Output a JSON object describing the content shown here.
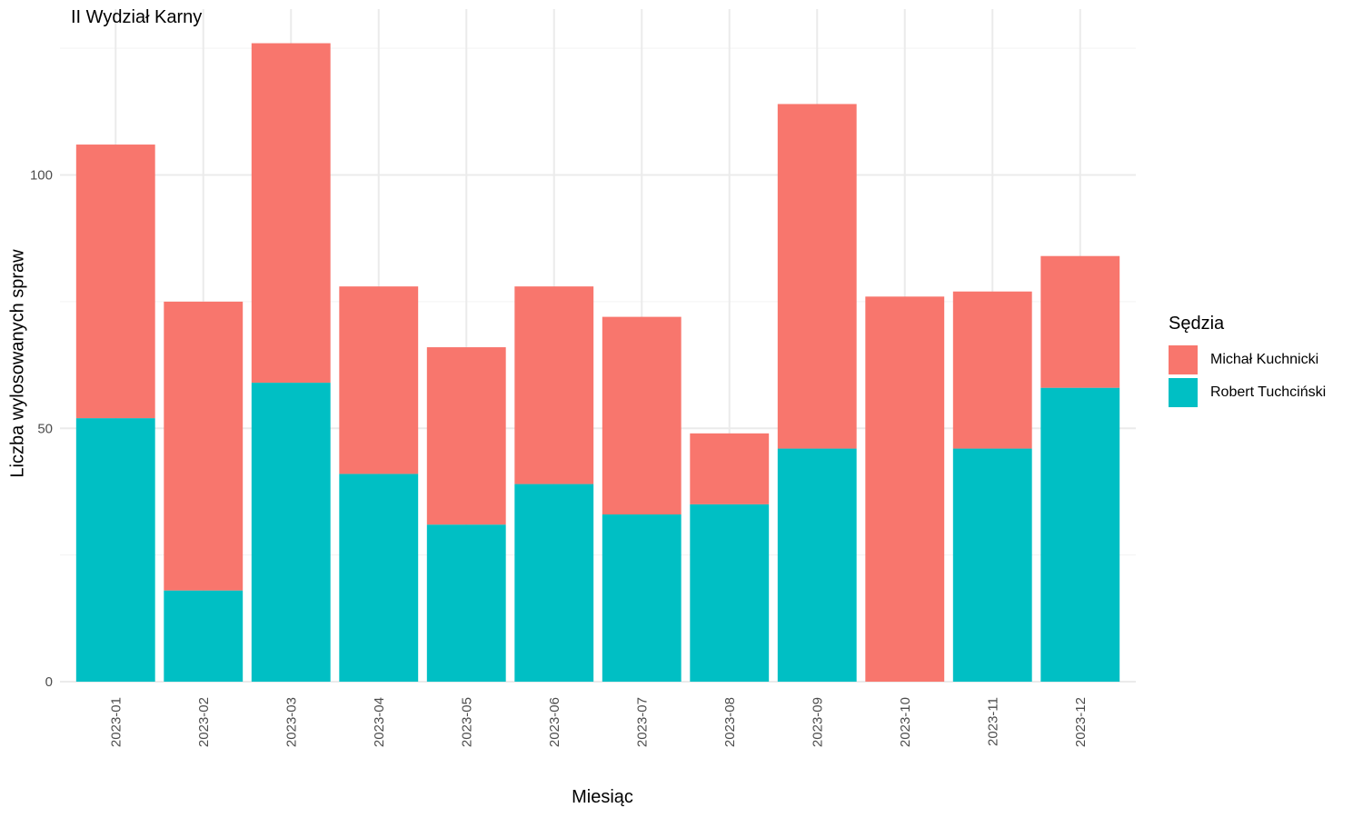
{
  "chart_data": {
    "type": "bar",
    "stacked": true,
    "title": "II Wydział Karny",
    "xlabel": "Miesiąc",
    "ylabel": "Liczba wylosowanych spraw",
    "categories": [
      "2023-01",
      "2023-02",
      "2023-03",
      "2023-04",
      "2023-05",
      "2023-06",
      "2023-07",
      "2023-08",
      "2023-09",
      "2023-10",
      "2023-11",
      "2023-12"
    ],
    "series": [
      {
        "name": "Robert Tuchciński",
        "color": "#00BFC4",
        "values": [
          52,
          18,
          59,
          41,
          31,
          39,
          33,
          35,
          46,
          0,
          46,
          58
        ]
      },
      {
        "name": "Michał Kuchnicki",
        "color": "#F8766D",
        "values": [
          54,
          57,
          67,
          37,
          35,
          39,
          39,
          14,
          68,
          76,
          31,
          26
        ]
      }
    ],
    "yticks": [
      0,
      50,
      100
    ],
    "ylim": [
      0,
      130
    ],
    "grid": true,
    "legend": {
      "title": "Sędzia",
      "position": "right",
      "items": [
        {
          "label": "Michał Kuchnicki",
          "color": "#F8766D"
        },
        {
          "label": "Robert Tuchciński",
          "color": "#00BFC4"
        }
      ]
    }
  }
}
